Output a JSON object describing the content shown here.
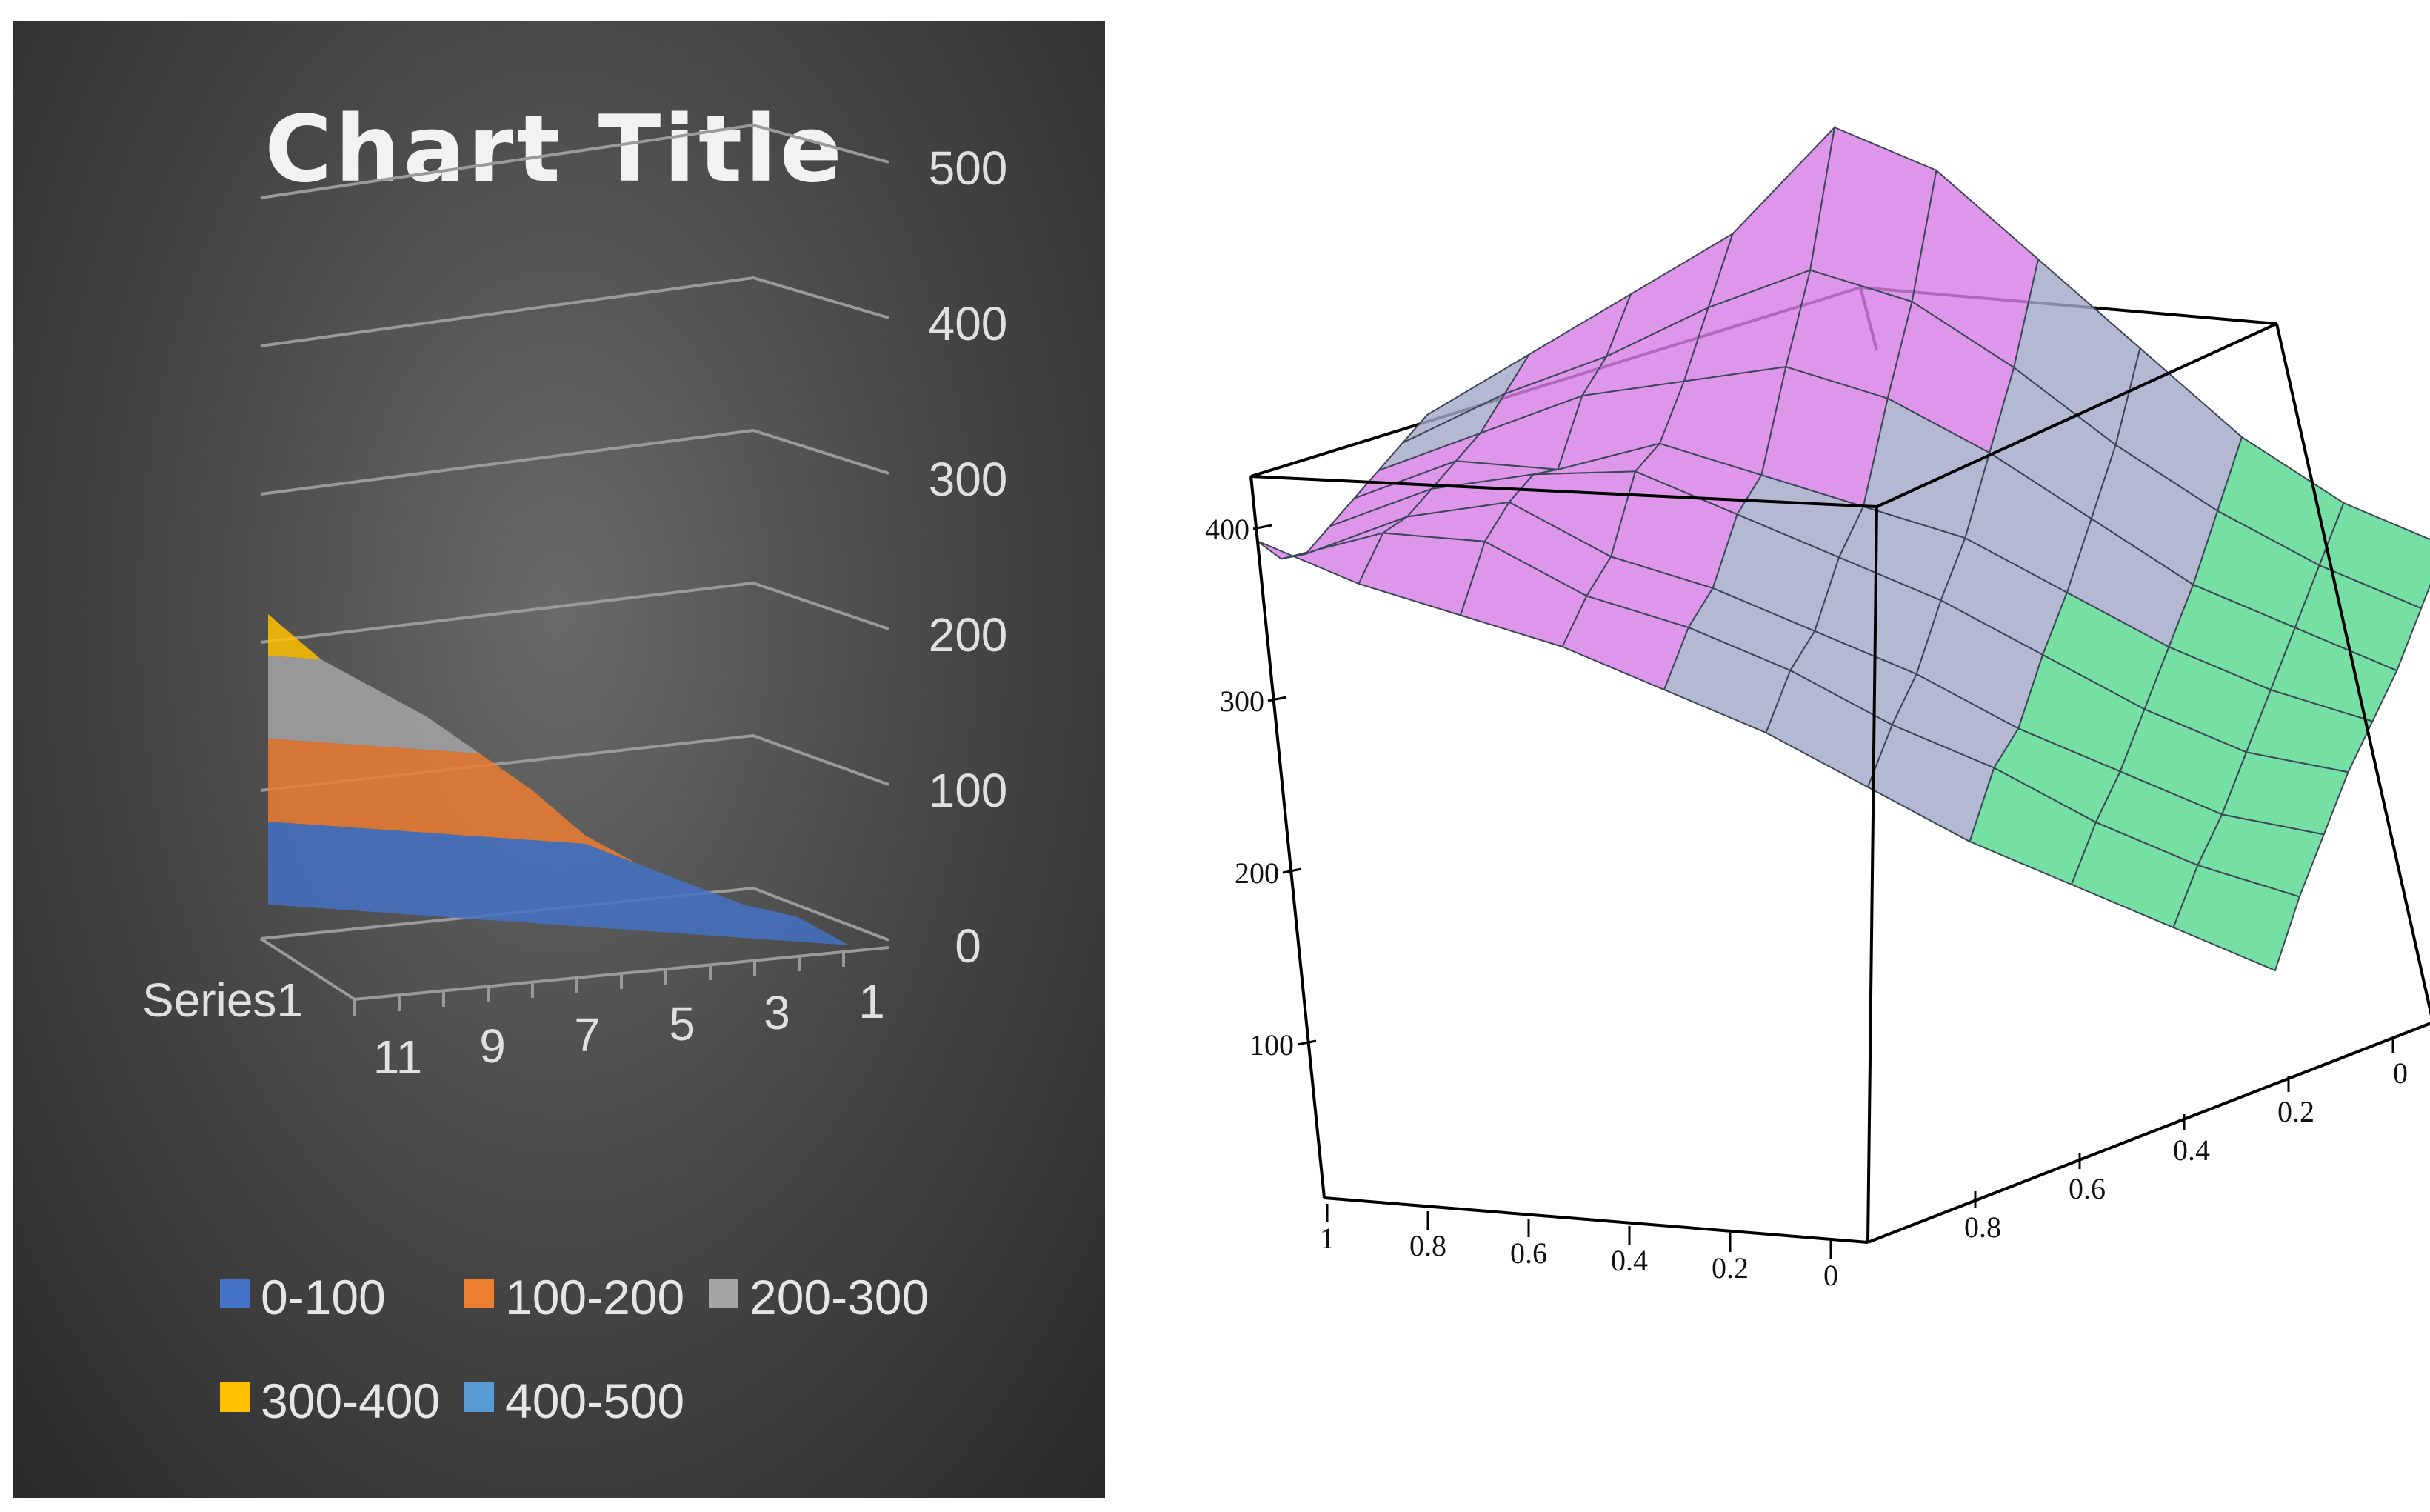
{
  "chart_data": [
    {
      "type": "surface",
      "title": "Chart Title",
      "series": [
        {
          "name": "Series1",
          "values": [
            0,
            30,
            40,
            60,
            80,
            110,
            160,
            200,
            240,
            270,
            300,
            350
          ]
        }
      ],
      "x_ticks": [
        "1",
        "3",
        "5",
        "7",
        "9",
        "11"
      ],
      "series_axis_labels": [
        "Series1"
      ],
      "z_ticks": [
        "0",
        "100",
        "200",
        "300",
        "400",
        "500"
      ],
      "zlim": [
        0,
        500
      ],
      "legend": [
        {
          "label": "0-100",
          "color": "#4472c4"
        },
        {
          "label": "100-200",
          "color": "#ed7d31"
        },
        {
          "label": "200-300",
          "color": "#a5a5a5"
        },
        {
          "label": "300-400",
          "color": "#ffc000"
        },
        {
          "label": "400-500",
          "color": "#5b9bd5"
        }
      ],
      "legend_position": "bottom",
      "background": "#404040"
    },
    {
      "type": "surface",
      "z_ticks": [
        "100",
        "200",
        "300",
        "400"
      ],
      "x_ticks": [
        "1",
        "0.8",
        "0.6",
        "0.4",
        "0.2",
        "0"
      ],
      "y_ticks": [
        "0.8",
        "0.6",
        "0.4",
        "0.2",
        "0"
      ],
      "grid": [
        [
          400,
          360,
          330,
          300,
          260,
          220,
          170,
          120,
          80,
          40,
          0
        ],
        [
          340,
          360,
          350,
          300,
          270,
          230,
          180,
          140,
          90,
          50,
          20
        ],
        [
          300,
          330,
          340,
          290,
          260,
          220,
          180,
          130,
          90,
          50,
          30
        ],
        [
          280,
          310,
          320,
          320,
          280,
          240,
          200,
          150,
          100,
          60,
          40
        ],
        [
          260,
          290,
          280,
          300,
          270,
          240,
          210,
          160,
          110,
          70,
          40
        ],
        [
          240,
          270,
          300,
          310,
          320,
          290,
          240,
          180,
          120,
          80,
          40
        ],
        [
          220,
          260,
          290,
          330,
          360,
          330,
          270,
          200,
          140,
          90,
          50
        ],
        [
          200,
          250,
          300,
          350,
          440,
          400,
          320,
          240,
          160,
          100,
          60
        ]
      ],
      "colors": {
        "high": "#d77fe6",
        "mid": "#a4a8c8",
        "low": "#57d890",
        "mesh": "#3c4757"
      }
    }
  ]
}
